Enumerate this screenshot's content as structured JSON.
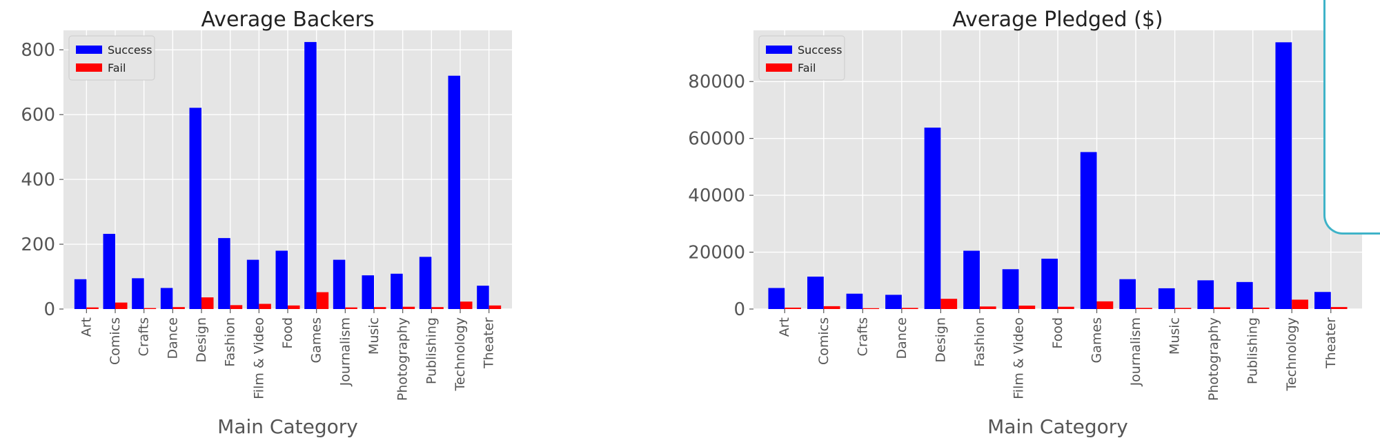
{
  "chart_data": [
    {
      "type": "bar",
      "title": "Average Backers",
      "xlabel": "Main Category",
      "ylabel": "",
      "ylim": [
        0,
        860
      ],
      "yticks": [
        0,
        200,
        400,
        600,
        800
      ],
      "grid": true,
      "legend_position": "top-left",
      "categories": [
        "Art",
        "Comics",
        "Crafts",
        "Dance",
        "Design",
        "Fashion",
        "Film & Video",
        "Food",
        "Games",
        "Journalism",
        "Music",
        "Photography",
        "Publishing",
        "Technology",
        "Theater"
      ],
      "series": [
        {
          "name": "Success",
          "color": "#0000ff",
          "values": [
            92,
            232,
            95,
            65,
            621,
            219,
            152,
            180,
            824,
            152,
            104,
            109,
            161,
            720,
            72
          ]
        },
        {
          "name": "Fail",
          "color": "#ff0000",
          "values": [
            5,
            20,
            3,
            6,
            36,
            12,
            16,
            11,
            52,
            5,
            6,
            7,
            6,
            23,
            11
          ]
        }
      ]
    },
    {
      "type": "bar",
      "title": "Average Pledged ($)",
      "xlabel": "Main Category",
      "ylabel": "",
      "ylim": [
        0,
        98000
      ],
      "yticks": [
        0,
        20000,
        40000,
        60000,
        80000
      ],
      "grid": true,
      "legend_position": "top-left",
      "categories": [
        "Art",
        "Comics",
        "Crafts",
        "Dance",
        "Design",
        "Fashion",
        "Film & Video",
        "Food",
        "Games",
        "Journalism",
        "Music",
        "Photography",
        "Publishing",
        "Technology",
        "Theater"
      ],
      "series": [
        {
          "name": "Success",
          "color": "#0000ff",
          "values": [
            7400,
            11400,
            5400,
            5000,
            63800,
            20500,
            14000,
            17700,
            55200,
            10500,
            7300,
            10100,
            9500,
            93800,
            6000
          ]
        },
        {
          "name": "Fail",
          "color": "#ff0000",
          "values": [
            500,
            1000,
            300,
            400,
            3600,
            900,
            1200,
            800,
            2700,
            400,
            400,
            600,
            500,
            3300,
            700
          ]
        }
      ]
    }
  ],
  "colors": {
    "axes_background": "#e5e5e5",
    "grid": "#ffffff",
    "text": "#555555",
    "accent_decor": "#3fb3c8"
  }
}
